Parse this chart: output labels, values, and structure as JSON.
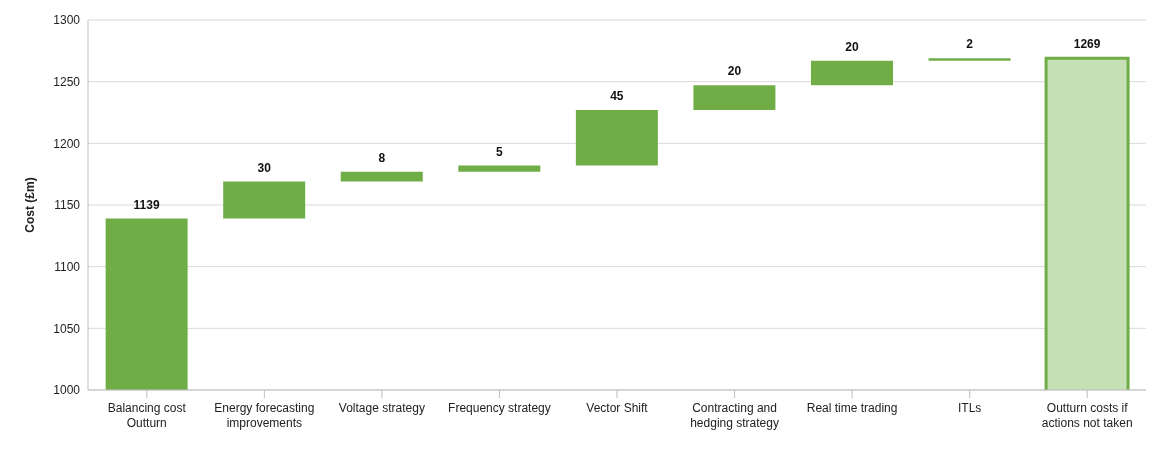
{
  "chart_data": {
    "type": "bar",
    "ylabel": "Cost (£m)",
    "categories": [
      "Balancing cost Outturn",
      "Energy forecasting improvements",
      "Voltage strategy",
      "Frequency strategy",
      "Vector Shift",
      "Contracting and hedging strategy",
      "Real time trading",
      "ITLs",
      "Outturn costs if actions not taken"
    ],
    "values": [
      1139,
      30,
      8,
      5,
      45,
      20,
      20,
      2,
      1269
    ],
    "base": [
      0,
      1139,
      1169,
      1177,
      1182,
      1227,
      1247,
      1267,
      0
    ],
    "color": "#70ad47",
    "colors": [
      "#70ad47",
      "#70ad47",
      "#70ad47",
      "#70ad47",
      "#70ad47",
      "#70ad47",
      "#70ad47",
      "#70ad47",
      "#c5e0b4"
    ],
    "data_labels": true,
    "ylim": [
      1000,
      1300
    ],
    "yticks": [
      1000,
      1050,
      1100,
      1150,
      1200,
      1250,
      1300
    ],
    "grid": "y"
  }
}
